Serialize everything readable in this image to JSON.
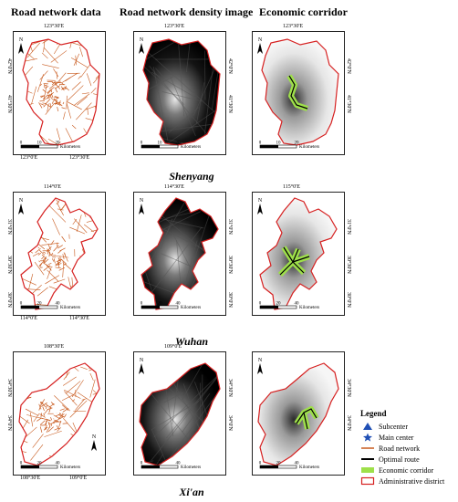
{
  "headers": [
    "Road network data",
    "Road network density image",
    "Economic corridor"
  ],
  "cities": [
    {
      "name": "Shenyang",
      "top_ticks": [
        "123°30'E",
        "123°30'E",
        "123°30'E"
      ],
      "bottom_ticks": [
        "123°0'E",
        "123°30'E"
      ],
      "lat_ticks": [
        "42°0'N",
        "41°30'N"
      ],
      "scale_labels": [
        "0",
        "10",
        "20",
        "Kilometers"
      ]
    },
    {
      "name": "Wuhan",
      "top_ticks": [
        "114°0'E",
        "114°30'E",
        "115°0'E"
      ],
      "bottom_ticks": [
        "114°0'E",
        "114°30'E"
      ],
      "lat_ticks": [
        "31°0'N",
        "30°30'N",
        "30°0'N"
      ],
      "scale_labels": [
        "0",
        "20",
        "40",
        "Kilometers"
      ]
    },
    {
      "name": "Xi'an",
      "top_ticks": [
        "108°30'E",
        "109°0'E"
      ],
      "bottom_ticks": [
        "108°30'E",
        "109°0'E"
      ],
      "lat_ticks": [
        "34°30'N",
        "34°0'N"
      ],
      "scale_labels": [
        "0",
        "20",
        "40",
        "Kilometers"
      ]
    }
  ],
  "north_label": "N",
  "legend": {
    "title": "Legend",
    "items": [
      {
        "label": "Subcenter",
        "icon": "triangle-icon",
        "color": "#1f4fb5"
      },
      {
        "label": "Main center",
        "icon": "star-icon",
        "color": "#1f4fb5"
      },
      {
        "label": "Road network",
        "icon": "line-icon",
        "color": "#c85a1e"
      },
      {
        "label": "Optimal route",
        "icon": "line-icon",
        "color": "#000000"
      },
      {
        "label": "Economic corridor",
        "icon": "band-icon",
        "color": "#9ee04a"
      },
      {
        "label": "Administrative district",
        "icon": "outline-icon",
        "color": "#d62020"
      }
    ]
  },
  "colors": {
    "road": "#c85a1e",
    "boundary": "#d62020",
    "corridor": "#9ee04a",
    "route": "#000000"
  }
}
